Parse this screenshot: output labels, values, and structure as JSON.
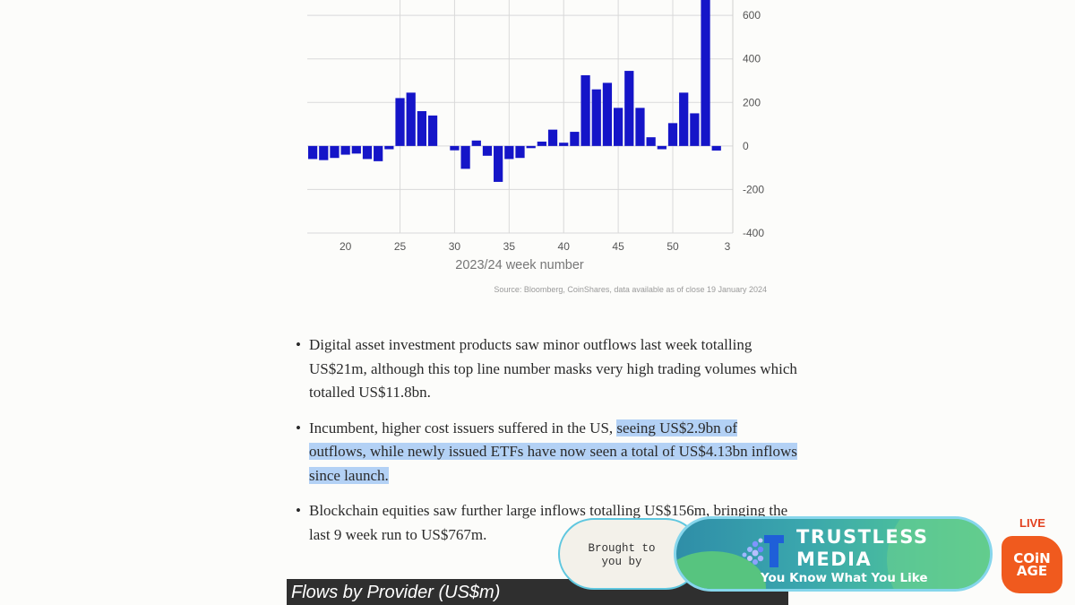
{
  "chart_data": {
    "type": "bar",
    "title": "",
    "xlabel": "2023/24 week number",
    "ylabel": "",
    "x": [
      17,
      18,
      19,
      20,
      21,
      22,
      23,
      24,
      25,
      26,
      27,
      28,
      29,
      30,
      31,
      32,
      33,
      34,
      35,
      36,
      37,
      38,
      39,
      40,
      41,
      42,
      43,
      44,
      45,
      46,
      47,
      48,
      49,
      50,
      51,
      52,
      1,
      2,
      3
    ],
    "values": [
      -60,
      -65,
      -55,
      -40,
      -35,
      -60,
      -70,
      -15,
      220,
      245,
      160,
      140,
      0,
      -20,
      -105,
      25,
      -45,
      -165,
      -60,
      -55,
      -10,
      20,
      75,
      15,
      65,
      325,
      260,
      290,
      175,
      345,
      175,
      40,
      -15,
      105,
      245,
      150,
      1050,
      -21,
      0
    ],
    "x_tick_labels": [
      "20",
      "25",
      "30",
      "35",
      "40",
      "45",
      "50",
      "3"
    ],
    "y_ticks": [
      600,
      400,
      200,
      0,
      -200,
      -400
    ],
    "ylim": [
      -400,
      600
    ],
    "bar_color": "#1515c8",
    "grid": true,
    "y_axis_side": "right"
  },
  "source_note": "Source: Bloomberg, CoinShares, data available as of close 19 January 2024",
  "bullets": [
    {
      "pre": "Digital asset investment products saw minor outflows last week totalling US$21m, although this top line number masks very high trading volumes which totalled US$11.8bn.",
      "highlight": "",
      "post": ""
    },
    {
      "pre": "Incumbent, higher cost issuers suffered in the US, ",
      "highlight": "seeing US$2.9bn of outflows, while newly issued ETFs have now seen a total of US$4.13bn inflows since launch.",
      "post": ""
    },
    {
      "pre": "Blockchain equities saw further large inflows totalling US$156m, bringing the last 9 week run to US$767m.",
      "highlight": "",
      "post": ""
    }
  ],
  "bullet_glyph": "•",
  "next_section_title": "Flows by Provider (US$m)",
  "overlay": {
    "sponsor_line1": "Brought to",
    "sponsor_line2": "you by",
    "sponsor_name": "TRUSTLESS MEDIA",
    "sponsor_tagline": "You Know What You Like",
    "live_label": "LIVE",
    "badge_line1": "COiN",
    "badge_line2": "AGE"
  }
}
